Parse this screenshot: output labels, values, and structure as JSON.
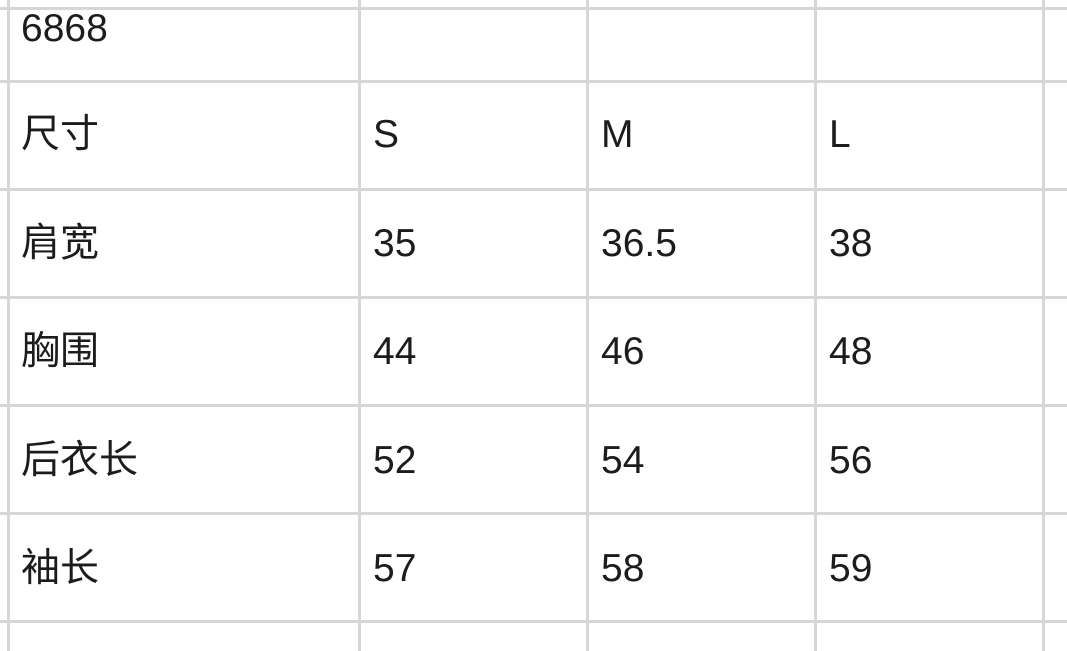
{
  "title_cell": "6868",
  "table": {
    "header": [
      "尺寸",
      "S",
      "M",
      "L"
    ],
    "rows": [
      [
        "肩宽",
        "35",
        "36.5",
        "38"
      ],
      [
        "胸围",
        "44",
        "46",
        "48"
      ],
      [
        "后衣长",
        "52",
        "54",
        "56"
      ],
      [
        "袖长",
        "57",
        "58",
        "59"
      ]
    ]
  }
}
